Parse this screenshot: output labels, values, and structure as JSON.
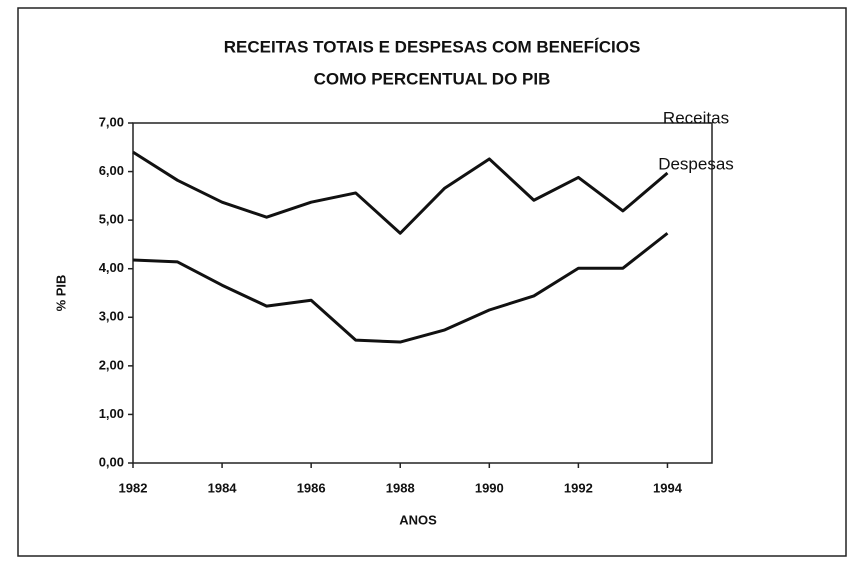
{
  "chart_data": {
    "type": "line",
    "title": [
      "RECEITAS TOTAIS E DESPESAS COM BENEFÍCIOS",
      "COMO PERCENTUAL DO PIB"
    ],
    "x_label": "ANOS",
    "y_label": "% PIB",
    "x": [
      1982,
      1983,
      1984,
      1985,
      1986,
      1987,
      1988,
      1989,
      1990,
      1991,
      1992,
      1993,
      1994
    ],
    "series": [
      {
        "name": "Receitas",
        "color": "#111111",
        "values": [
          6.4,
          5.82,
          5.37,
          5.06,
          5.37,
          5.56,
          4.73,
          5.66,
          6.26,
          5.41,
          5.88,
          5.19,
          5.97
        ]
      },
      {
        "name": "Despesas",
        "color": "#111111",
        "values": [
          4.18,
          4.14,
          3.66,
          3.23,
          3.35,
          2.53,
          2.49,
          2.74,
          3.15,
          3.44,
          4.01,
          4.01,
          4.73
        ]
      }
    ],
    "xlim": [
      1982,
      1995
    ],
    "xticks": [
      1982,
      1984,
      1986,
      1988,
      1990,
      1992,
      1994
    ],
    "ylim": [
      0,
      7
    ],
    "yticks": [
      {
        "value": 0,
        "label": "0,00"
      },
      {
        "value": 1,
        "label": "1,00"
      },
      {
        "value": 2,
        "label": "2,00"
      },
      {
        "value": 3,
        "label": "3,00"
      },
      {
        "value": 4,
        "label": "4,00"
      },
      {
        "value": 5,
        "label": "5,00"
      },
      {
        "value": 6,
        "label": "6,00"
      },
      {
        "value": 7,
        "label": "7,00"
      }
    ]
  }
}
